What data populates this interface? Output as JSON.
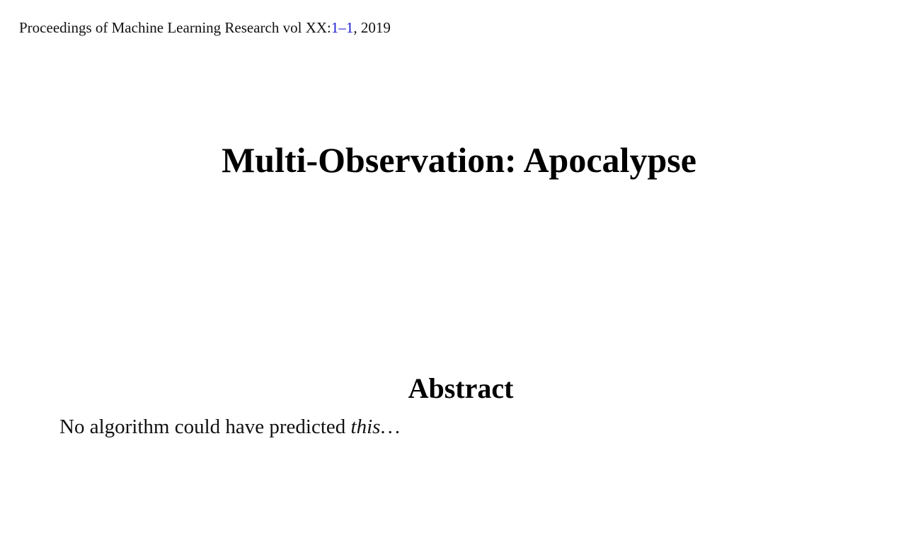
{
  "header": {
    "proceedings": "Proceedings of Machine Learning Research vol XX:",
    "page_start": "1",
    "page_dash": "–",
    "page_end": "1",
    "year_sep": ", 2019",
    "link_color": "#1a1ad6"
  },
  "title": "Multi-Observation:  Apocalypse",
  "abstract": {
    "heading": "Abstract",
    "text_lead": "No algorithm could have predicted ",
    "text_emph": "this",
    "text_trail": "..."
  }
}
